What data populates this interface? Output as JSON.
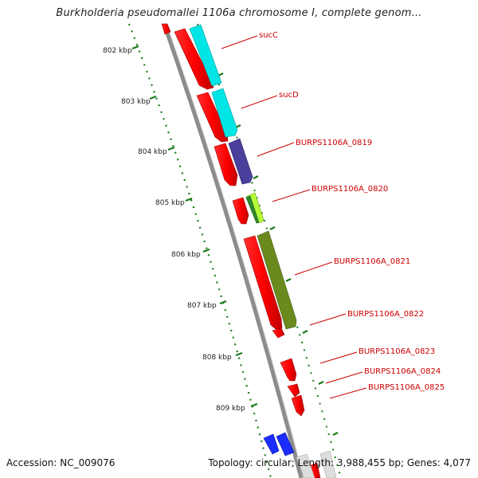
{
  "title": "Burkholderia pseudomallei 1106a chromosome I, complete genom...",
  "accession": "Accession: NC_009076",
  "topology": "Topology: circular; Length: 3,988,455 bp; Genes: 4,077",
  "ruler": {
    "kbp": [
      802,
      803,
      804,
      805,
      806,
      807,
      808,
      809
    ],
    "unit": "kbp"
  },
  "genes": [
    {
      "name": "sucC"
    },
    {
      "name": "sucD"
    },
    {
      "name": "BURPS1106A_0819"
    },
    {
      "name": "BURPS1106A_0820"
    },
    {
      "name": "BURPS1106A_0821"
    },
    {
      "name": "BURPS1106A_0822"
    },
    {
      "name": "BURPS1106A_0823"
    },
    {
      "name": "BURPS1106A_0824"
    },
    {
      "name": "BURPS1106A_0825"
    }
  ],
  "colors": {
    "backbone": "#8c8c8c",
    "cds": "#ff0000",
    "label": "#cc0000",
    "ruler": "#1a7a1a",
    "cyan": "#00e6e6",
    "purple": "#4a3f9a",
    "olive": "#6b8a1e",
    "lime": "#b6ff3a",
    "blue": "#1a2cff"
  }
}
